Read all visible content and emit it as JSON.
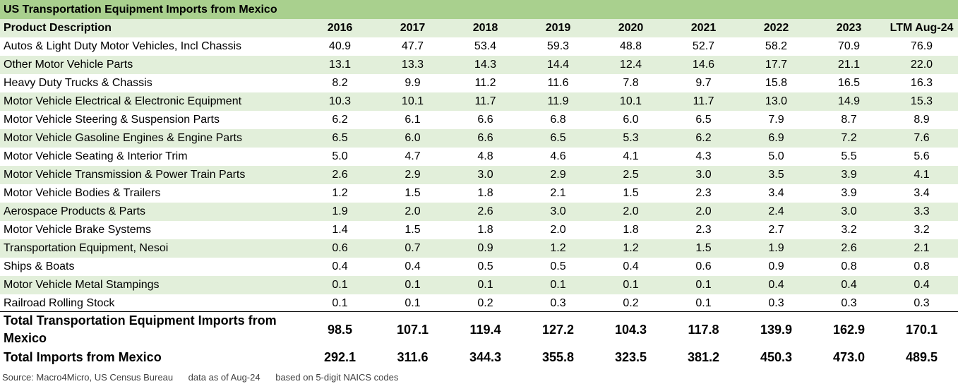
{
  "title": "US Transportation Equipment Imports from Mexico",
  "header": {
    "desc": "Product Description",
    "years": [
      "2016",
      "2017",
      "2018",
      "2019",
      "2020",
      "2021",
      "2022",
      "2023",
      "LTM Aug-24"
    ]
  },
  "rows": [
    {
      "label": "Autos & Light Duty Motor Vehicles, Incl Chassis",
      "values": [
        "40.9",
        "47.7",
        "53.4",
        "59.3",
        "48.8",
        "52.7",
        "58.2",
        "70.9",
        "76.9"
      ]
    },
    {
      "label": "Other Motor Vehicle Parts",
      "values": [
        "13.1",
        "13.3",
        "14.3",
        "14.4",
        "12.4",
        "14.6",
        "17.7",
        "21.1",
        "22.0"
      ]
    },
    {
      "label": "Heavy Duty Trucks & Chassis",
      "values": [
        "8.2",
        "9.9",
        "11.2",
        "11.6",
        "7.8",
        "9.7",
        "15.8",
        "16.5",
        "16.3"
      ]
    },
    {
      "label": "Motor Vehicle Electrical & Electronic Equipment",
      "values": [
        "10.3",
        "10.1",
        "11.7",
        "11.9",
        "10.1",
        "11.7",
        "13.0",
        "14.9",
        "15.3"
      ]
    },
    {
      "label": "Motor Vehicle Steering & Suspension Parts",
      "values": [
        "6.2",
        "6.1",
        "6.6",
        "6.8",
        "6.0",
        "6.5",
        "7.9",
        "8.7",
        "8.9"
      ]
    },
    {
      "label": "Motor Vehicle Gasoline Engines & Engine Parts",
      "values": [
        "6.5",
        "6.0",
        "6.6",
        "6.5",
        "5.3",
        "6.2",
        "6.9",
        "7.2",
        "7.6"
      ]
    },
    {
      "label": "Motor Vehicle Seating & Interior Trim",
      "values": [
        "5.0",
        "4.7",
        "4.8",
        "4.6",
        "4.1",
        "4.3",
        "5.0",
        "5.5",
        "5.6"
      ]
    },
    {
      "label": "Motor Vehicle Transmission & Power Train Parts",
      "values": [
        "2.6",
        "2.9",
        "3.0",
        "2.9",
        "2.5",
        "3.0",
        "3.5",
        "3.9",
        "4.1"
      ]
    },
    {
      "label": "Motor Vehicle Bodies & Trailers",
      "values": [
        "1.2",
        "1.5",
        "1.8",
        "2.1",
        "1.5",
        "2.3",
        "3.4",
        "3.9",
        "3.4"
      ]
    },
    {
      "label": "Aerospace Products & Parts",
      "values": [
        "1.9",
        "2.0",
        "2.6",
        "3.0",
        "2.0",
        "2.0",
        "2.4",
        "3.0",
        "3.3"
      ]
    },
    {
      "label": "Motor Vehicle Brake Systems",
      "values": [
        "1.4",
        "1.5",
        "1.8",
        "2.0",
        "1.8",
        "2.3",
        "2.7",
        "3.2",
        "3.2"
      ]
    },
    {
      "label": "Transportation Equipment, Nesoi",
      "values": [
        "0.6",
        "0.7",
        "0.9",
        "1.2",
        "1.2",
        "1.5",
        "1.9",
        "2.6",
        "2.1"
      ]
    },
    {
      "label": "Ships & Boats",
      "values": [
        "0.4",
        "0.4",
        "0.5",
        "0.5",
        "0.4",
        "0.6",
        "0.9",
        "0.8",
        "0.8"
      ]
    },
    {
      "label": "Motor Vehicle Metal Stampings",
      "values": [
        "0.1",
        "0.1",
        "0.1",
        "0.1",
        "0.1",
        "0.1",
        "0.4",
        "0.4",
        "0.4"
      ]
    },
    {
      "label": "Railroad Rolling Stock",
      "values": [
        "0.1",
        "0.1",
        "0.2",
        "0.3",
        "0.2",
        "0.1",
        "0.3",
        "0.3",
        "0.3"
      ]
    }
  ],
  "totals": [
    {
      "label": "Total Transportation Equipment Imports from Mexico",
      "values": [
        "98.5",
        "107.1",
        "119.4",
        "127.2",
        "104.3",
        "117.8",
        "139.9",
        "162.9",
        "170.1"
      ]
    },
    {
      "label": "Total Imports from Mexico",
      "values": [
        "292.1",
        "311.6",
        "344.3",
        "355.8",
        "323.5",
        "381.2",
        "450.3",
        "473.0",
        "489.5"
      ]
    }
  ],
  "footer": {
    "source": "Source: Macro4Micro, US Census Bureau",
    "asof": "data as of Aug-24",
    "basis": "based on 5-digit NAICS codes"
  },
  "colors": {
    "title_band": "#a9d08e",
    "row_band": "#e2efda",
    "plain": "#ffffff"
  },
  "chart_data": {
    "type": "table",
    "title": "US Transportation Equipment Imports from Mexico",
    "columns": [
      "Product Description",
      "2016",
      "2017",
      "2018",
      "2019",
      "2020",
      "2021",
      "2022",
      "2023",
      "LTM Aug-24"
    ],
    "rows": [
      [
        "Autos & Light Duty Motor Vehicles, Incl Chassis",
        40.9,
        47.7,
        53.4,
        59.3,
        48.8,
        52.7,
        58.2,
        70.9,
        76.9
      ],
      [
        "Other Motor Vehicle Parts",
        13.1,
        13.3,
        14.3,
        14.4,
        12.4,
        14.6,
        17.7,
        21.1,
        22.0
      ],
      [
        "Heavy Duty Trucks & Chassis",
        8.2,
        9.9,
        11.2,
        11.6,
        7.8,
        9.7,
        15.8,
        16.5,
        16.3
      ],
      [
        "Motor Vehicle Electrical & Electronic Equipment",
        10.3,
        10.1,
        11.7,
        11.9,
        10.1,
        11.7,
        13.0,
        14.9,
        15.3
      ],
      [
        "Motor Vehicle Steering & Suspension Parts",
        6.2,
        6.1,
        6.6,
        6.8,
        6.0,
        6.5,
        7.9,
        8.7,
        8.9
      ],
      [
        "Motor Vehicle Gasoline Engines & Engine Parts",
        6.5,
        6.0,
        6.6,
        6.5,
        5.3,
        6.2,
        6.9,
        7.2,
        7.6
      ],
      [
        "Motor Vehicle Seating & Interior Trim",
        5.0,
        4.7,
        4.8,
        4.6,
        4.1,
        4.3,
        5.0,
        5.5,
        5.6
      ],
      [
        "Motor Vehicle Transmission & Power Train Parts",
        2.6,
        2.9,
        3.0,
        2.9,
        2.5,
        3.0,
        3.5,
        3.9,
        4.1
      ],
      [
        "Motor Vehicle Bodies & Trailers",
        1.2,
        1.5,
        1.8,
        2.1,
        1.5,
        2.3,
        3.4,
        3.9,
        3.4
      ],
      [
        "Aerospace Products & Parts",
        1.9,
        2.0,
        2.6,
        3.0,
        2.0,
        2.0,
        2.4,
        3.0,
        3.3
      ],
      [
        "Motor Vehicle Brake Systems",
        1.4,
        1.5,
        1.8,
        2.0,
        1.8,
        2.3,
        2.7,
        3.2,
        3.2
      ],
      [
        "Transportation Equipment, Nesoi",
        0.6,
        0.7,
        0.9,
        1.2,
        1.2,
        1.5,
        1.9,
        2.6,
        2.1
      ],
      [
        "Ships & Boats",
        0.4,
        0.4,
        0.5,
        0.5,
        0.4,
        0.6,
        0.9,
        0.8,
        0.8
      ],
      [
        "Motor Vehicle Metal Stampings",
        0.1,
        0.1,
        0.1,
        0.1,
        0.1,
        0.1,
        0.4,
        0.4,
        0.4
      ],
      [
        "Railroad Rolling Stock",
        0.1,
        0.1,
        0.2,
        0.3,
        0.2,
        0.1,
        0.3,
        0.3,
        0.3
      ],
      [
        "Total Transportation Equipment Imports from Mexico",
        98.5,
        107.1,
        119.4,
        127.2,
        104.3,
        117.8,
        139.9,
        162.9,
        170.1
      ],
      [
        "Total Imports from Mexico",
        292.1,
        311.6,
        344.3,
        355.8,
        323.5,
        381.2,
        450.3,
        473.0,
        489.5
      ]
    ]
  }
}
